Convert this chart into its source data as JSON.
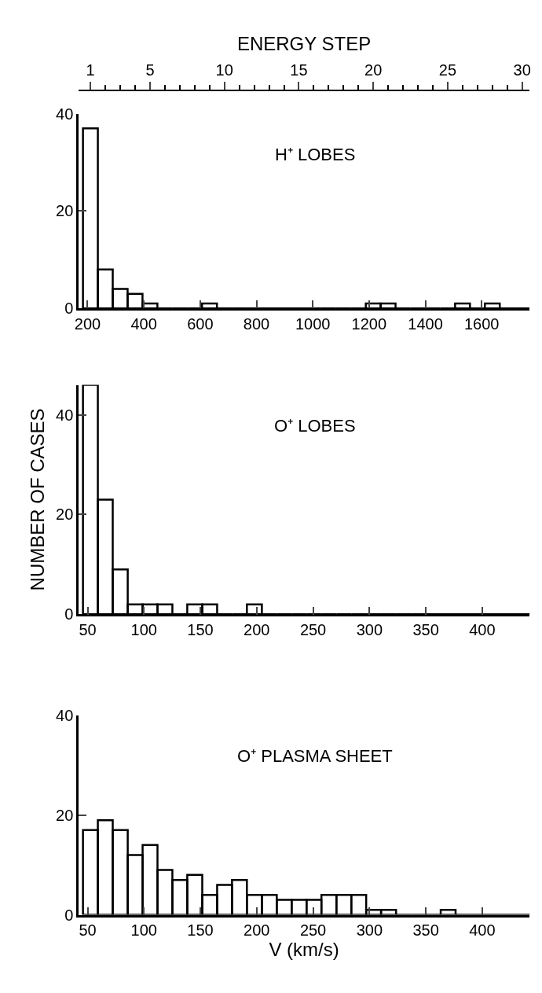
{
  "chart_data": [
    {
      "type": "histogram",
      "title": "H⁺ LOBES",
      "x2label": "ENERGY STEP",
      "color": "#000000",
      "bins": [
        183.6,
        236.5,
        289.4,
        342.2,
        395.1,
        448.0,
        500.9,
        553.7,
        606.6,
        659.5,
        712.4,
        765.3,
        818.1,
        871.0,
        923.9,
        976.8,
        1029.6,
        1082.5,
        1135.4,
        1188.3,
        1241.2,
        1294.0,
        1346.9,
        1399.8,
        1452.7,
        1505.5,
        1558.4,
        1611.3,
        1664.2,
        1717.1,
        1769.9
      ],
      "values": [
        37,
        8,
        4,
        3,
        1,
        0,
        0,
        0,
        1,
        0,
        0,
        0,
        0,
        0,
        0,
        0,
        0,
        0,
        0,
        1,
        1,
        0,
        0,
        0,
        0,
        1,
        0,
        1,
        0,
        0
      ],
      "xlim": [
        168,
        1770
      ],
      "xticks": [
        200,
        400,
        600,
        800,
        1000,
        1200,
        1400,
        1600
      ],
      "x2lim": [
        0.2,
        30.5
      ],
      "x2ticks": [
        1,
        5,
        10,
        15,
        20,
        25,
        30
      ],
      "ylim": [
        0,
        40
      ],
      "yticks": [
        0,
        20,
        40
      ]
    },
    {
      "type": "histogram",
      "title": "O⁺ LOBES",
      "ylabel": "NUMBER OF CASES",
      "color": "#000000",
      "bins": [
        45.9,
        59.1,
        72.3,
        85.6,
        98.8,
        112.0,
        125.2,
        138.4,
        151.7,
        164.9,
        178.1,
        191.3,
        204.6,
        217.8,
        231.0,
        244.2,
        257.4,
        270.7,
        283.9,
        297.1,
        310.3,
        323.6,
        336.8,
        350.0,
        363.2,
        376.4,
        389.7,
        402.9,
        416.1,
        429.3,
        442.6
      ],
      "values": [
        46,
        23,
        9,
        2,
        2,
        2,
        0,
        2,
        2,
        0,
        0,
        2,
        0,
        0,
        0,
        0,
        0,
        0,
        0,
        0,
        0,
        0,
        0,
        0,
        0,
        0,
        0,
        0,
        0,
        0
      ],
      "xlim": [
        42,
        442
      ],
      "xticks": [
        50,
        100,
        150,
        200,
        250,
        300,
        350,
        400
      ],
      "ylim": [
        0,
        46
      ],
      "yticks": [
        0,
        20,
        40
      ]
    },
    {
      "type": "histogram",
      "title": "O⁺ PLASMA SHEET",
      "xlabel": "V (km/s)",
      "color": "#000000",
      "bins": [
        45.9,
        59.1,
        72.3,
        85.6,
        98.8,
        112.0,
        125.2,
        138.4,
        151.7,
        164.9,
        178.1,
        191.3,
        204.6,
        217.8,
        231.0,
        244.2,
        257.4,
        270.7,
        283.9,
        297.1,
        310.3,
        323.6,
        336.8,
        350.0,
        363.2,
        376.4,
        389.7,
        402.9,
        416.1,
        429.3,
        442.6
      ],
      "values": [
        17,
        19,
        17,
        12,
        14,
        9,
        7,
        8,
        4,
        6,
        7,
        4,
        4,
        3,
        3,
        3,
        4,
        4,
        4,
        1,
        1,
        0,
        0,
        0,
        1,
        0,
        0,
        0,
        0,
        0
      ],
      "xlim": [
        42,
        442
      ],
      "xticks": [
        50,
        100,
        150,
        200,
        250,
        300,
        350,
        400
      ],
      "ylim": [
        0,
        40
      ],
      "yticks": [
        0,
        20,
        40
      ]
    }
  ]
}
